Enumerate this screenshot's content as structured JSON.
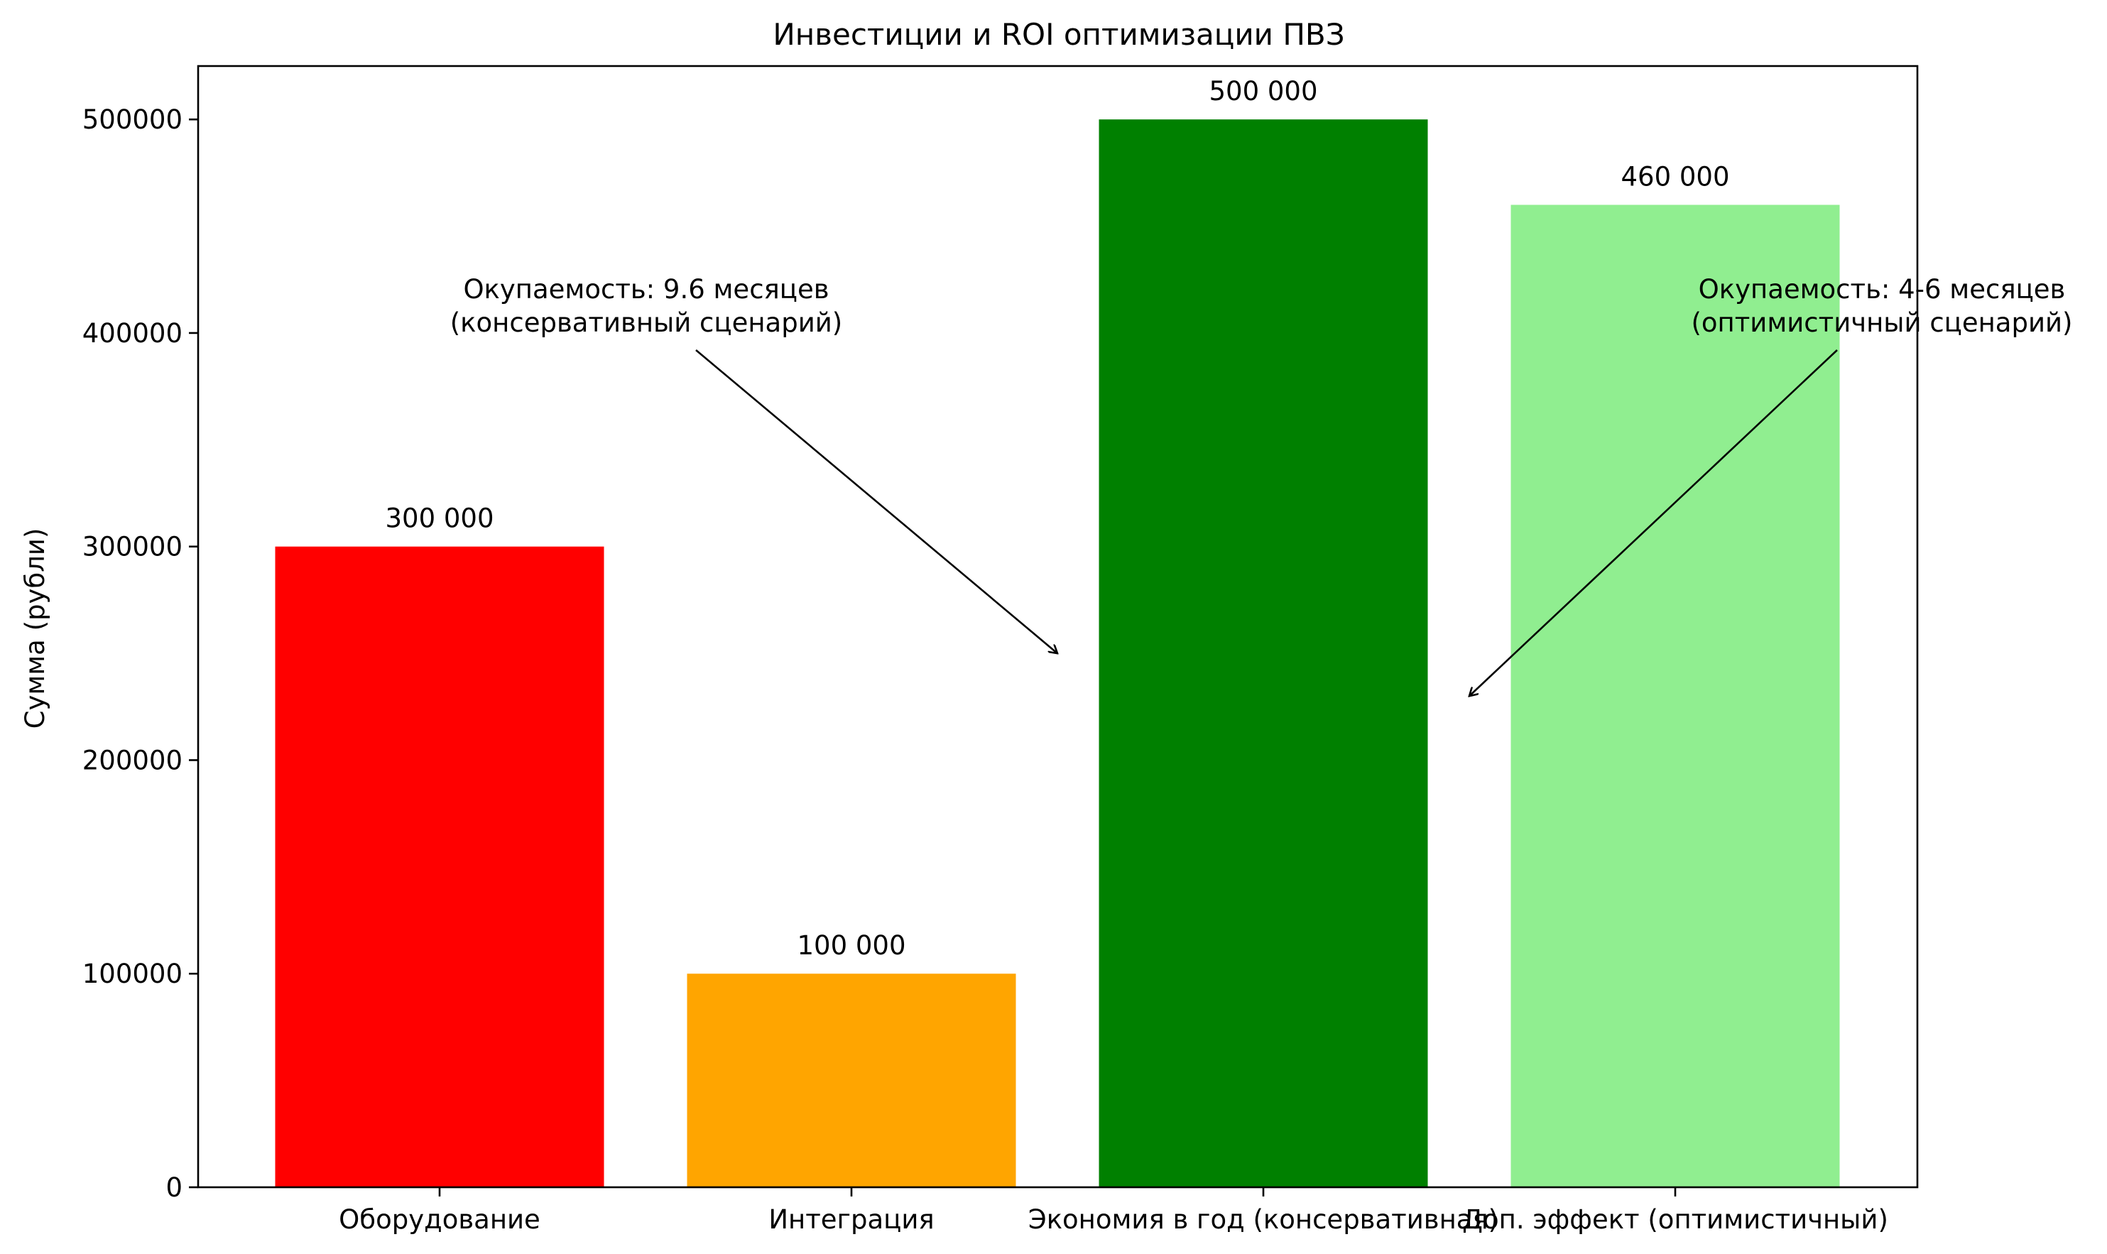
{
  "chart_data": {
    "type": "bar",
    "title": "Инвестиции и ROI оптимизации ПВЗ",
    "xlabel": "",
    "ylabel": "Сумма (рубли)",
    "ylim": [
      0,
      525000
    ],
    "yticks": [
      0,
      100000,
      200000,
      300000,
      400000,
      500000
    ],
    "ytick_labels": [
      "0",
      "100000",
      "200000",
      "300000",
      "400000",
      "500000"
    ],
    "categories": [
      "Оборудование",
      "Интеграция",
      "Экономия в год (консервативная)",
      "Доп. эффект (оптимистичный)"
    ],
    "values": [
      300000,
      100000,
      500000,
      460000
    ],
    "value_labels": [
      "300 000",
      "100 000",
      "500 000",
      "460 000"
    ],
    "colors": [
      "#ff0000",
      "#ffa500",
      "#008000",
      "#90ee90"
    ],
    "grid": false,
    "annotations": [
      {
        "lines": [
          "Окупаемость: 9.6 месяцев",
          "(консервативный сценарий)"
        ],
        "arrow_target": {
          "x": 1.5,
          "y": 250000
        }
      },
      {
        "lines": [
          "Окупаемость: 4-6 месяцев",
          "(оптимистичный сценарий)"
        ],
        "arrow_target": {
          "x": 2.5,
          "y": 230000
        }
      }
    ]
  }
}
